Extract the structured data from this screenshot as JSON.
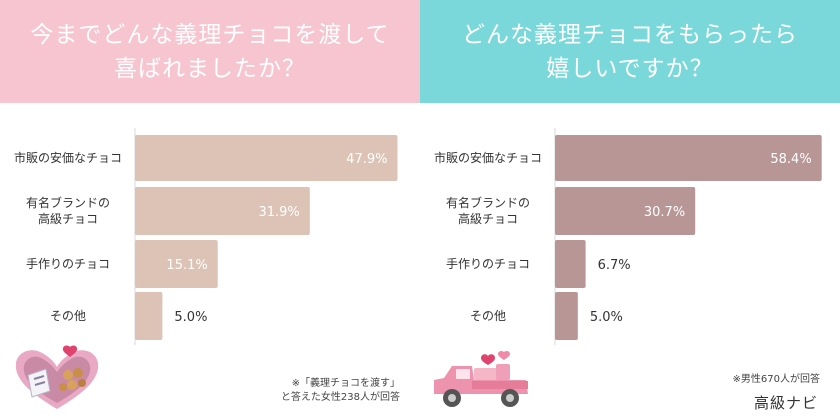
{
  "left": {
    "title_line1": "今までどんな義理チョコを渡して",
    "title_line2": "喜ばれましたか？",
    "footnote_line1": "※「義理チョコを渡す」",
    "footnote_line2": "と答えた女性238人が回答"
  },
  "right": {
    "title_line1": "どんな義理チョコをもらったら",
    "title_line2": "嬉しいですか？",
    "footnote": "※男性670人が回答",
    "brand": "高級ナビ"
  },
  "colors": {
    "left_header": "#f6c5cf",
    "right_header": "#7ad8db",
    "left_bar": "#dcc3b6",
    "right_bar": "#b89696"
  },
  "icons": {
    "left": "heart-chocolate-box-icon",
    "right": "pink-truck-hearts-icon"
  },
  "chart_data": [
    {
      "type": "bar",
      "orientation": "horizontal",
      "categories": [
        [
          "市販の安価なチョコ"
        ],
        [
          "有名ブランドの",
          "高級チョコ"
        ],
        [
          "手作りのチョコ"
        ],
        [
          "その他"
        ]
      ],
      "values": [
        47.9,
        31.9,
        15.1,
        5.0
      ],
      "value_labels": [
        "47.9%",
        "31.9%",
        "15.1%",
        "5.0%"
      ],
      "xlim": [
        0,
        50
      ],
      "grid": false
    },
    {
      "type": "bar",
      "orientation": "horizontal",
      "categories": [
        [
          "市販の安価なチョコ"
        ],
        [
          "有名ブランドの",
          "高級チョコ"
        ],
        [
          "手作りのチョコ"
        ],
        [
          "その他"
        ]
      ],
      "values": [
        58.4,
        30.7,
        6.7,
        5.0
      ],
      "value_labels": [
        "58.4%",
        "30.7%",
        "6.7%",
        "5.0%"
      ],
      "xlim": [
        0,
        60
      ],
      "grid": false
    }
  ]
}
